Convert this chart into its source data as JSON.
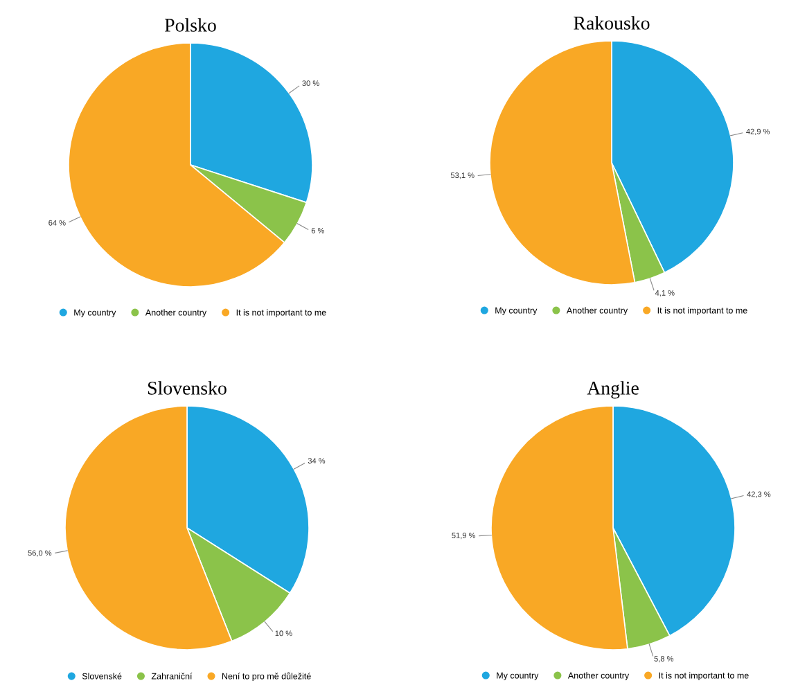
{
  "chart_data": [
    {
      "type": "pie",
      "title": "Polsko",
      "categories": [
        "My country",
        "Another country",
        "It is not important to me"
      ],
      "values": [
        30,
        6,
        64
      ],
      "value_labels": [
        "30 %",
        "6 %",
        "64 %"
      ],
      "colors": [
        "#1fa7e0",
        "#8bc34a",
        "#f9a825"
      ],
      "legend": "bottom"
    },
    {
      "type": "pie",
      "title": "Rakousko",
      "categories": [
        "My country",
        "Another country",
        "It is not important to me"
      ],
      "values": [
        42.9,
        4.1,
        53.1
      ],
      "value_labels": [
        "42,9 %",
        "4,1 %",
        "53,1 %"
      ],
      "colors": [
        "#1fa7e0",
        "#8bc34a",
        "#f9a825"
      ],
      "legend": "bottom"
    },
    {
      "type": "pie",
      "title": "Slovensko",
      "categories": [
        "Slovenské",
        "Zahraniční",
        "Není to pro mě důležité"
      ],
      "values": [
        34,
        10,
        56.0
      ],
      "value_labels": [
        "34 %",
        "10 %",
        "56,0 %"
      ],
      "colors": [
        "#1fa7e0",
        "#8bc34a",
        "#f9a825"
      ],
      "legend": "bottom"
    },
    {
      "type": "pie",
      "title": "Anglie",
      "categories": [
        "My country",
        "Another country",
        "It is not important to me"
      ],
      "values": [
        42.3,
        5.8,
        51.9
      ],
      "value_labels": [
        "42,3 %",
        "5,8 %",
        "51,9 %"
      ],
      "colors": [
        "#1fa7e0",
        "#8bc34a",
        "#f9a825"
      ],
      "legend": "bottom"
    }
  ]
}
